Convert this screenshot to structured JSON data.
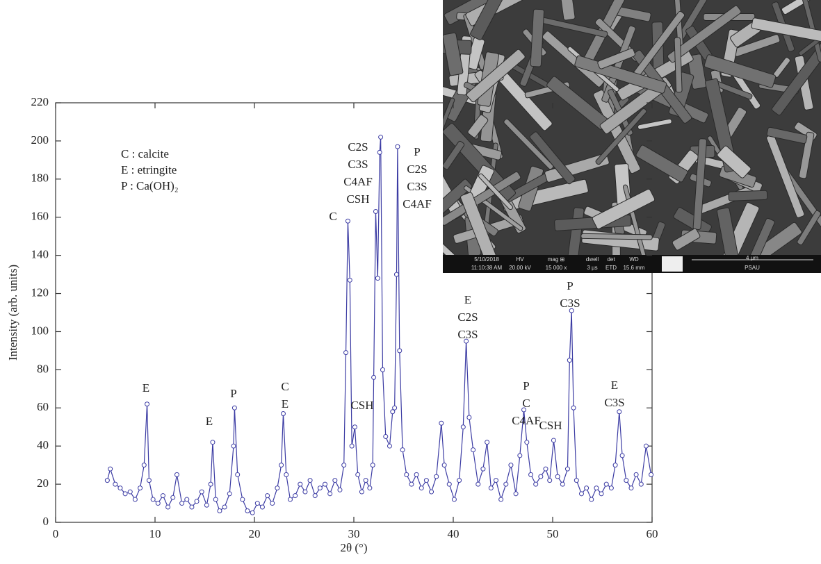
{
  "chart_data": {
    "type": "line",
    "xlabel": "2θ (°)",
    "ylabel": "Intensity (arb. units)",
    "xlim": [
      0,
      60
    ],
    "xticks": [
      0,
      10,
      20,
      30,
      40,
      50,
      60
    ],
    "ylim": [
      0,
      220
    ],
    "yticks": [
      0,
      20,
      40,
      60,
      80,
      100,
      120,
      140,
      160,
      180,
      200,
      220
    ],
    "legend_text": [
      "C : calcite",
      "E : etringite",
      "P : Ca(OH)₂"
    ],
    "annotations": [
      [
        "E"
      ],
      [
        "E"
      ],
      [
        "P"
      ],
      [
        "C",
        "E"
      ],
      [
        "C"
      ],
      [
        "C2S",
        "C3S",
        "C4AF",
        "CSH"
      ],
      [
        "CSH"
      ],
      [
        "P",
        "C2S",
        "C3S",
        "C4AF"
      ],
      [
        "E",
        "C2S",
        "C3S"
      ],
      [
        "P",
        "C",
        "C4AF"
      ],
      [
        "CSH"
      ],
      [
        "P",
        "C3S"
      ],
      [
        "E",
        "C3S"
      ]
    ],
    "series": [
      {
        "color": "#3b3ba3",
        "x": [
          5.2,
          5.5,
          6.0,
          6.5,
          7.0,
          7.5,
          8.0,
          8.5,
          8.9,
          9.2,
          9.4,
          9.8,
          10.3,
          10.8,
          11.3,
          11.8,
          12.2,
          12.7,
          13.2,
          13.7,
          14.2,
          14.7,
          15.2,
          15.6,
          15.8,
          16.1,
          16.5,
          17.0,
          17.5,
          17.9,
          18.0,
          18.3,
          18.8,
          19.3,
          19.8,
          20.3,
          20.8,
          21.3,
          21.8,
          22.3,
          22.7,
          22.9,
          23.2,
          23.6,
          24.1,
          24.6,
          25.1,
          25.6,
          26.1,
          26.6,
          27.1,
          27.6,
          28.1,
          28.6,
          29.0,
          29.2,
          29.4,
          29.6,
          29.8,
          30.1,
          30.4,
          30.8,
          31.2,
          31.6,
          31.9,
          32.0,
          32.2,
          32.4,
          32.6,
          32.7,
          32.9,
          33.2,
          33.6,
          33.9,
          34.1,
          34.3,
          34.4,
          34.6,
          34.9,
          35.3,
          35.8,
          36.3,
          36.8,
          37.3,
          37.8,
          38.3,
          38.8,
          39.1,
          39.6,
          40.1,
          40.6,
          41.0,
          41.3,
          41.6,
          42.0,
          42.5,
          43.0,
          43.4,
          43.8,
          44.3,
          44.8,
          45.3,
          45.8,
          46.3,
          46.7,
          47.1,
          47.4,
          47.8,
          48.3,
          48.8,
          49.3,
          49.7,
          50.1,
          50.5,
          51.0,
          51.5,
          51.7,
          51.9,
          52.1,
          52.4,
          52.9,
          53.4,
          53.9,
          54.4,
          54.9,
          55.4,
          55.9,
          56.3,
          56.7,
          57.0,
          57.4,
          57.9,
          58.4,
          58.9,
          59.4,
          59.9
        ],
        "values": [
          22,
          28,
          20,
          18,
          15,
          16,
          12,
          18,
          30,
          62,
          22,
          12,
          10,
          14,
          8,
          13,
          25,
          10,
          12,
          8,
          11,
          16,
          9,
          20,
          42,
          12,
          6,
          8,
          15,
          40,
          60,
          25,
          12,
          6,
          5,
          10,
          8,
          14,
          10,
          18,
          30,
          57,
          25,
          12,
          14,
          20,
          16,
          22,
          14,
          18,
          20,
          15,
          22,
          17,
          30,
          89,
          158,
          127,
          40,
          50,
          25,
          16,
          22,
          18,
          30,
          76,
          163,
          128,
          194,
          202,
          80,
          45,
          40,
          58,
          60,
          130,
          197,
          90,
          38,
          25,
          20,
          25,
          18,
          22,
          16,
          24,
          52,
          30,
          20,
          12,
          22,
          50,
          95,
          55,
          38,
          20,
          28,
          42,
          18,
          22,
          12,
          20,
          30,
          15,
          35,
          59,
          42,
          25,
          20,
          24,
          28,
          22,
          43,
          24,
          20,
          28,
          85,
          111,
          60,
          22,
          15,
          18,
          12,
          18,
          15,
          20,
          18,
          30,
          58,
          35,
          22,
          18,
          25,
          20,
          40,
          25
        ]
      }
    ]
  },
  "inset_image": {
    "date": "5/10/2018",
    "time": "11:10:38 AM",
    "fields": [
      [
        "HV",
        "20.00 kV"
      ],
      [
        "mag ⊞",
        "15 000 x"
      ],
      [
        "dwell",
        "3 µs"
      ],
      [
        "det",
        "ETD"
      ],
      [
        "WD",
        "15.6 mm"
      ]
    ],
    "scale": "4 µm",
    "org": "PSAU"
  }
}
